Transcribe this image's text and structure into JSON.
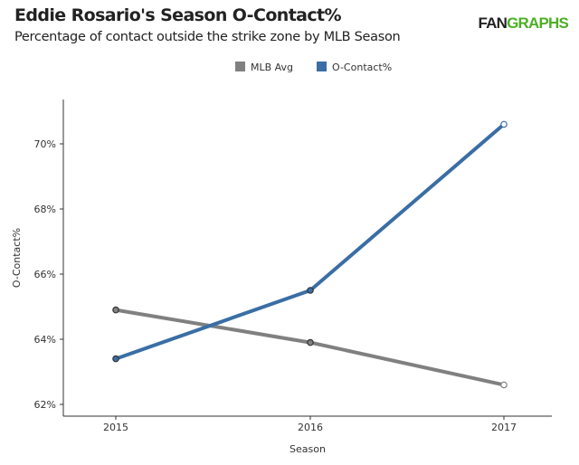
{
  "title": "Eddie Rosario's Season O-Contact%",
  "subtitle": "Percentage of contact outside the strike zone by MLB Season",
  "logo": {
    "prefix": "FAN",
    "suffix": "GRAPHS"
  },
  "chart_data": {
    "type": "line",
    "xlabel": "Season",
    "ylabel": "O-Contact%",
    "x": [
      "2015",
      "2016",
      "2017"
    ],
    "ylim": [
      61.8,
      71.3
    ],
    "yticks": [
      62,
      64,
      66,
      68,
      70
    ],
    "ytick_labels": [
      "62%",
      "64%",
      "66%",
      "68%",
      "70%"
    ],
    "legend_placement": "top-center",
    "grid": false,
    "series": [
      {
        "name": "MLB Avg",
        "color": "#808080",
        "values": [
          64.9,
          63.9,
          62.6
        ]
      },
      {
        "name": "O-Contact%",
        "color": "#3a6ea5",
        "values": [
          63.4,
          65.5,
          70.6
        ]
      }
    ]
  }
}
